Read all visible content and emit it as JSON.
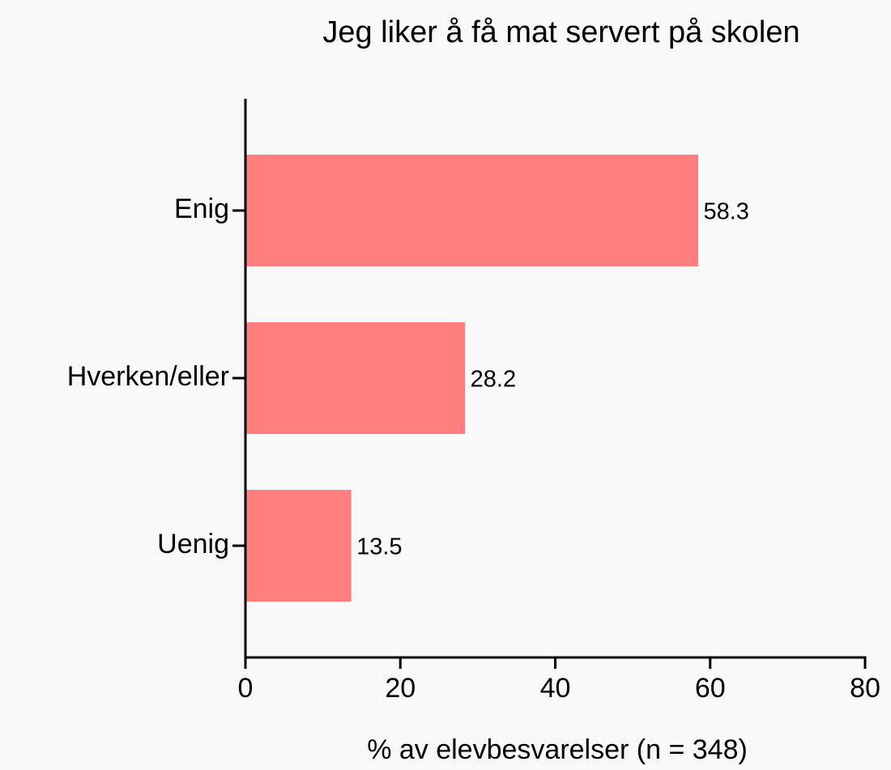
{
  "chart_data": {
    "type": "bar",
    "orientation": "horizontal",
    "title": "Jeg liker å få mat servert på skolen",
    "x_label": "% av elevbesvarelser (n = 348)",
    "categories": [
      "Enig",
      "Hverken/eller",
      "Uenig"
    ],
    "values": [
      58.3,
      28.2,
      13.5
    ],
    "color": "#ff7f7f",
    "xlim": [
      0,
      80
    ],
    "xticks": [
      0,
      20,
      40,
      60,
      80
    ],
    "grid": false
  }
}
